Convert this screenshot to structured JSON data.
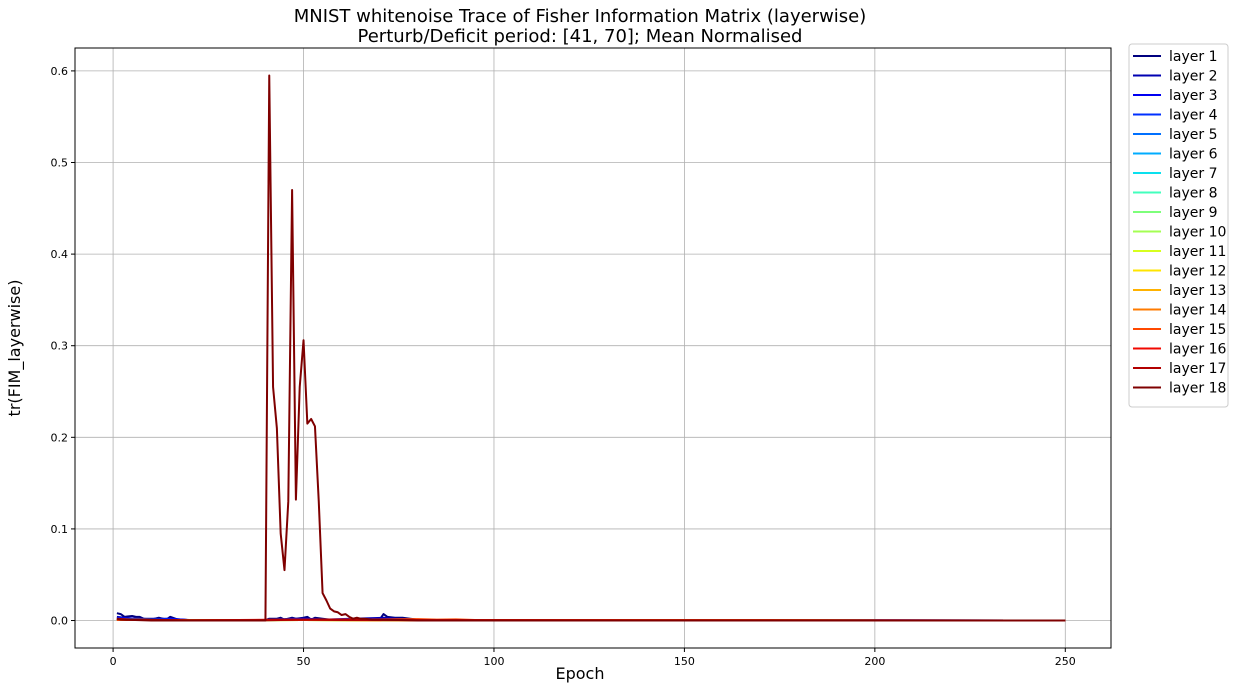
{
  "chart_data": {
    "type": "line",
    "title": "MNIST whitenoise Trace of Fisher Information Matrix (layerwise)",
    "subtitle": "Perturb/Deficit period: [41, 70]; Mean Normalised",
    "xlabel": "Epoch",
    "ylabel": "tr(FIM_layerwise)",
    "xlim": [
      -10,
      262
    ],
    "ylim": [
      -0.03,
      0.625
    ],
    "xticks": [
      0,
      50,
      100,
      150,
      200,
      250
    ],
    "yticks": [
      0.0,
      0.1,
      0.2,
      0.3,
      0.4,
      0.5,
      0.6
    ],
    "xtick_labels": [
      "0",
      "50",
      "100",
      "150",
      "200",
      "250"
    ],
    "ytick_labels": [
      "0.0",
      "0.1",
      "0.2",
      "0.3",
      "0.4",
      "0.5",
      "0.6"
    ],
    "grid": true,
    "legend_position": "outside-right",
    "series": [
      {
        "name": "layer 1",
        "color": "#00007f",
        "points": [
          [
            1,
            0.008
          ],
          [
            2,
            0.007
          ],
          [
            3,
            0.004
          ],
          [
            5,
            0.005
          ],
          [
            6,
            0.004
          ],
          [
            7,
            0.004
          ],
          [
            8,
            0.002
          ],
          [
            10,
            0.001
          ],
          [
            12,
            0.003
          ],
          [
            14,
            0.001
          ],
          [
            15,
            0.004
          ],
          [
            17,
            0.001
          ],
          [
            20,
            0.0005
          ],
          [
            40,
            0.0005
          ],
          [
            41,
            0.002
          ],
          [
            43,
            0.002
          ],
          [
            44,
            0.003
          ],
          [
            45,
            0.001
          ],
          [
            47,
            0.003
          ],
          [
            48,
            0.002
          ],
          [
            50,
            0.003
          ],
          [
            51,
            0.004
          ],
          [
            52,
            0.001
          ],
          [
            53,
            0.003
          ],
          [
            55,
            0.002
          ],
          [
            57,
            0.001
          ],
          [
            70,
            0.001
          ],
          [
            71,
            0.007
          ],
          [
            72,
            0.004
          ],
          [
            74,
            0.003
          ],
          [
            76,
            0.003
          ],
          [
            78,
            0.002
          ],
          [
            80,
            0.001
          ],
          [
            85,
            0.0005
          ],
          [
            250,
            0.0
          ]
        ]
      },
      {
        "name": "layer 2",
        "color": "#0000b2",
        "points": [
          [
            1,
            0.004
          ],
          [
            3,
            0.003
          ],
          [
            6,
            0.002
          ],
          [
            9,
            0.002
          ],
          [
            12,
            0.002
          ],
          [
            15,
            0.002
          ],
          [
            20,
            0.0005
          ],
          [
            40,
            0.0005
          ],
          [
            42,
            0.001
          ],
          [
            47,
            0.002
          ],
          [
            51,
            0.002
          ],
          [
            55,
            0.001
          ],
          [
            71,
            0.003
          ],
          [
            75,
            0.002
          ],
          [
            80,
            0.001
          ],
          [
            85,
            0.0005
          ],
          [
            250,
            0.0
          ]
        ]
      },
      {
        "name": "layer 3",
        "color": "#0000f1",
        "points": [
          [
            1,
            0.003
          ],
          [
            5,
            0.002
          ],
          [
            10,
            0.001
          ],
          [
            15,
            0.002
          ],
          [
            20,
            0.0004
          ],
          [
            40,
            0.0004
          ],
          [
            45,
            0.001
          ],
          [
            50,
            0.002
          ],
          [
            55,
            0.001
          ],
          [
            71,
            0.002
          ],
          [
            76,
            0.001
          ],
          [
            85,
            0.0004
          ],
          [
            250,
            0.0
          ]
        ]
      },
      {
        "name": "layer 4",
        "color": "#0030ff",
        "points": [
          [
            1,
            0.002
          ],
          [
            5,
            0.001
          ],
          [
            15,
            0.001
          ],
          [
            20,
            0.0003
          ],
          [
            40,
            0.0003
          ],
          [
            48,
            0.001
          ],
          [
            55,
            0.0005
          ],
          [
            72,
            0.001
          ],
          [
            85,
            0.0003
          ],
          [
            250,
            0.0
          ]
        ]
      },
      {
        "name": "layer 5",
        "color": "#0070ff",
        "points": [
          [
            1,
            0.002
          ],
          [
            10,
            0.001
          ],
          [
            20,
            0.0003
          ],
          [
            40,
            0.0003
          ],
          [
            50,
            0.001
          ],
          [
            60,
            0.0004
          ],
          [
            85,
            0.0002
          ],
          [
            250,
            0.0
          ]
        ]
      },
      {
        "name": "layer 6",
        "color": "#00acff",
        "points": [
          [
            1,
            0.001
          ],
          [
            20,
            0.0002
          ],
          [
            50,
            0.0008
          ],
          [
            85,
            0.0002
          ],
          [
            250,
            0.0
          ]
        ]
      },
      {
        "name": "layer 7",
        "color": "#0ae0ee",
        "points": [
          [
            1,
            0.001
          ],
          [
            20,
            0.0002
          ],
          [
            50,
            0.0007
          ],
          [
            85,
            0.0002
          ],
          [
            250,
            0.0
          ]
        ]
      },
      {
        "name": "layer 8",
        "color": "#42ffbd",
        "points": [
          [
            1,
            0.001
          ],
          [
            20,
            0.0002
          ],
          [
            50,
            0.0006
          ],
          [
            85,
            0.0002
          ],
          [
            250,
            0.0
          ]
        ]
      },
      {
        "name": "layer 9",
        "color": "#7dff7a",
        "points": [
          [
            1,
            0.001
          ],
          [
            20,
            0.0002
          ],
          [
            50,
            0.0006
          ],
          [
            85,
            0.0002
          ],
          [
            250,
            0.0
          ]
        ]
      },
      {
        "name": "layer 10",
        "color": "#a4ff53",
        "points": [
          [
            1,
            0.001
          ],
          [
            20,
            0.0002
          ],
          [
            50,
            0.0006
          ],
          [
            85,
            0.0002
          ],
          [
            250,
            0.0
          ]
        ]
      },
      {
        "name": "layer 11",
        "color": "#d7ff1f",
        "points": [
          [
            1,
            0.001
          ],
          [
            20,
            0.0002
          ],
          [
            50,
            0.0006
          ],
          [
            85,
            0.0002
          ],
          [
            250,
            0.0
          ]
        ]
      },
      {
        "name": "layer 12",
        "color": "#ffe500",
        "points": [
          [
            1,
            0.001
          ],
          [
            20,
            0.0002
          ],
          [
            50,
            0.0006
          ],
          [
            85,
            0.0002
          ],
          [
            250,
            0.0
          ]
        ]
      },
      {
        "name": "layer 13",
        "color": "#ffb200",
        "points": [
          [
            1,
            0.001
          ],
          [
            20,
            0.0002
          ],
          [
            50,
            0.0006
          ],
          [
            85,
            0.0002
          ],
          [
            250,
            0.0
          ]
        ]
      },
      {
        "name": "layer 14",
        "color": "#ff7b00",
        "points": [
          [
            1,
            0.001
          ],
          [
            20,
            0.0002
          ],
          [
            50,
            0.0006
          ],
          [
            85,
            0.0002
          ],
          [
            250,
            0.0
          ]
        ]
      },
      {
        "name": "layer 15",
        "color": "#ff4800",
        "points": [
          [
            1,
            0.001
          ],
          [
            20,
            0.0002
          ],
          [
            50,
            0.0008
          ],
          [
            80,
            0.0015
          ],
          [
            85,
            0.001
          ],
          [
            90,
            0.0012
          ],
          [
            95,
            0.0005
          ],
          [
            250,
            0.0
          ]
        ]
      },
      {
        "name": "layer 16",
        "color": "#f10800",
        "points": [
          [
            1,
            0.001
          ],
          [
            20,
            0.0002
          ],
          [
            50,
            0.001
          ],
          [
            85,
            0.0005
          ],
          [
            250,
            0.0
          ]
        ]
      },
      {
        "name": "layer 17",
        "color": "#b20000",
        "points": [
          [
            1,
            0.002
          ],
          [
            5,
            0.001
          ],
          [
            20,
            0.0003
          ],
          [
            40,
            0.0003
          ],
          [
            50,
            0.001
          ],
          [
            60,
            0.0005
          ],
          [
            85,
            0.0003
          ],
          [
            250,
            0.0
          ]
        ]
      },
      {
        "name": "layer 18",
        "color": "#7f0000",
        "points": [
          [
            1,
            0.002
          ],
          [
            2,
            0.001
          ],
          [
            10,
            0.0
          ],
          [
            39,
            0.0
          ],
          [
            40,
            0.0
          ],
          [
            41,
            0.595
          ],
          [
            42,
            0.255
          ],
          [
            43,
            0.21
          ],
          [
            44,
            0.095
          ],
          [
            45,
            0.055
          ],
          [
            46,
            0.13
          ],
          [
            47,
            0.47
          ],
          [
            48,
            0.132
          ],
          [
            49,
            0.255
          ],
          [
            50,
            0.306
          ],
          [
            51,
            0.215
          ],
          [
            52,
            0.22
          ],
          [
            53,
            0.212
          ],
          [
            54,
            0.13
          ],
          [
            55,
            0.03
          ],
          [
            56,
            0.022
          ],
          [
            57,
            0.013
          ],
          [
            58,
            0.01
          ],
          [
            59,
            0.009
          ],
          [
            60,
            0.006
          ],
          [
            61,
            0.007
          ],
          [
            62,
            0.004
          ],
          [
            63,
            0.002
          ],
          [
            64,
            0.003
          ],
          [
            65,
            0.002
          ],
          [
            66,
            0.002
          ],
          [
            68,
            0.001
          ],
          [
            70,
            0.001
          ],
          [
            75,
            0.0005
          ],
          [
            80,
            0.0
          ],
          [
            250,
            0.0
          ]
        ]
      }
    ]
  }
}
